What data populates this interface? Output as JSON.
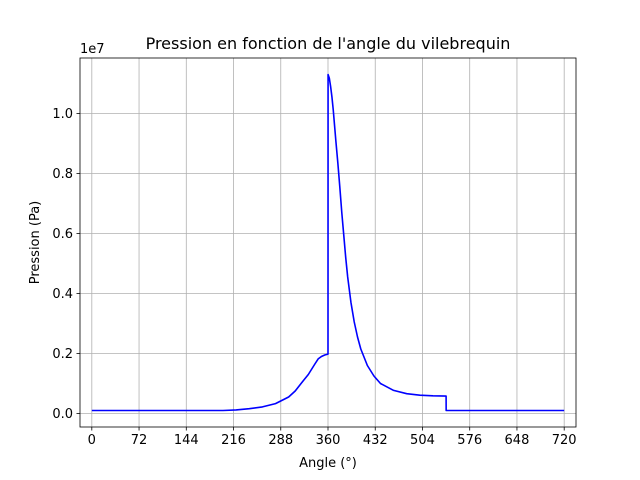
{
  "chart_data": {
    "type": "line",
    "title": "Pression en fonction de l'angle du vilebrequin",
    "xlabel": "Angle (°)",
    "ylabel": "Pression (Pa)",
    "y_offset_label": "1e7",
    "xlim": [
      -18,
      738
    ],
    "ylim": [
      -0.045,
      1.185
    ],
    "y_scale_factor": 10000000,
    "x_ticks": [
      0,
      72,
      144,
      216,
      288,
      360,
      432,
      504,
      576,
      648,
      720
    ],
    "y_ticks": [
      0.0,
      0.2,
      0.4,
      0.6,
      0.8,
      1.0
    ],
    "grid": true,
    "series": [
      {
        "color": "#0000ff",
        "x": [
          0,
          100,
          200,
          220,
          240,
          260,
          280,
          300,
          310,
          320,
          330,
          340,
          345,
          350,
          355,
          360,
          360.1,
          362,
          364,
          366,
          368,
          370,
          372,
          375,
          378,
          381,
          384,
          387,
          390,
          395,
          400,
          405,
          410,
          420,
          430,
          440,
          460,
          480,
          500,
          520,
          540,
          540.1,
          600,
          720
        ],
        "y": [
          0.01,
          0.01,
          0.01,
          0.012,
          0.016,
          0.022,
          0.033,
          0.055,
          0.075,
          0.103,
          0.13,
          0.165,
          0.182,
          0.19,
          0.195,
          0.198,
          1.13,
          1.118,
          1.09,
          1.055,
          1.012,
          0.96,
          0.908,
          0.835,
          0.755,
          0.67,
          0.595,
          0.52,
          0.455,
          0.37,
          0.305,
          0.255,
          0.215,
          0.16,
          0.125,
          0.1,
          0.077,
          0.066,
          0.061,
          0.059,
          0.058,
          0.01,
          0.01,
          0.01
        ]
      }
    ]
  }
}
